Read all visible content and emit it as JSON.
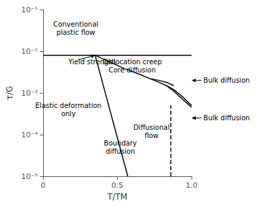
{
  "chart_data": {
    "type": "line",
    "xlabel": "T/TM",
    "ylabel": "τ/G",
    "xlim": [
      0,
      1.0
    ],
    "ylim": [
      1e-05,
      0.1
    ],
    "xticks": [
      0,
      0.5,
      {
        "value": 1.0,
        "label": "1.0"
      }
    ],
    "yticks": [
      {
        "value": 1e-05,
        "label": "10⁻⁵"
      },
      {
        "value": 0.0001,
        "label": "10⁻⁴"
      },
      {
        "value": 0.001,
        "label": "10⁻³"
      },
      {
        "value": 0.01,
        "label": "10⁻²"
      },
      {
        "value": 0.1,
        "label": "10⁻¹"
      }
    ],
    "log": "y",
    "grid": false,
    "color": "#000000",
    "series": [
      {
        "x": [
          0,
          1.0
        ],
        "values": [
          0.008,
          0.008
        ],
        "line_style": "solid"
      },
      {
        "x": [
          0.35,
          0.57
        ],
        "values": [
          0.008,
          1e-05
        ],
        "line_style": "solid"
      },
      {
        "x": [
          0.35,
          0.45,
          0.55,
          0.65,
          0.72,
          0.78,
          0.83,
          0.88,
          0.94,
          1.0
        ],
        "values": [
          0.008,
          0.0055,
          0.0038,
          0.0028,
          0.0022,
          0.0018,
          0.0015,
          0.0012,
          0.0008,
          0.0005
        ],
        "line_style": "solid"
      },
      {
        "x": [
          0.72,
          0.78,
          0.83,
          0.88
        ],
        "values": [
          0.0022,
          0.002,
          0.0018,
          0.0015
        ],
        "line_style": "solid"
      },
      {
        "x": [
          0.83,
          0.88,
          0.94,
          1.0
        ],
        "values": [
          0.0015,
          0.0011,
          0.0007,
          0.00045
        ],
        "line_style": "solid"
      },
      {
        "x": [
          0.86,
          0.86
        ],
        "values": [
          1e-05,
          0.0005
        ],
        "line_style": "dashed"
      }
    ],
    "annotations": [
      {
        "text": "Conventional\nplastic flow",
        "x": 0.22,
        "y": 0.035
      },
      {
        "text": "Yield strength",
        "x": 0.17,
        "y": 0.0055,
        "arrow": {
          "from": [
            0.235,
            0.0062
          ],
          "to": [
            0.35,
            0.008
          ]
        }
      },
      {
        "text": "Dislocation creep\nCore diffusion",
        "x": 0.6,
        "y": 0.0045
      },
      {
        "text": "Elastic deformation\nonly",
        "x": 0.17,
        "y": 0.0004
      },
      {
        "text": "Diffusional\nflow",
        "x": 0.73,
        "y": 0.00012
      },
      {
        "text": "Boundary\ndiffusion",
        "x": 0.52,
        "y": 5e-05
      },
      {
        "text": "Bulk diffusion",
        "x": 1.08,
        "y": 0.002,
        "arrow": {
          "from": [
            1.08,
            0.002
          ],
          "to": [
            1.0,
            0.002
          ]
        }
      },
      {
        "text": "Bulk diffusion",
        "x": 1.08,
        "y": 0.00025,
        "arrow": {
          "from": [
            1.08,
            0.00025
          ],
          "to": [
            1.0,
            0.00025
          ]
        }
      }
    ]
  }
}
